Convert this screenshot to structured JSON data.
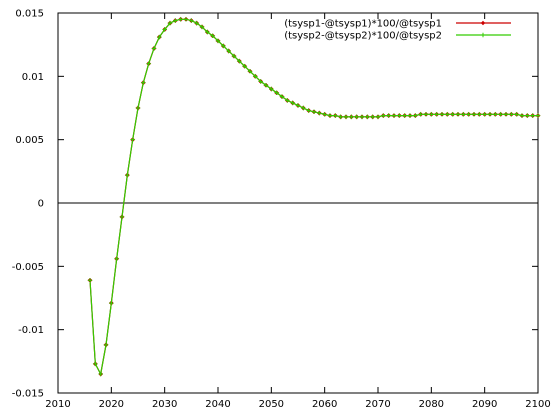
{
  "chart_data": {
    "type": "line",
    "title": "",
    "xlabel": "",
    "ylabel": "",
    "xlim": [
      2010,
      2100
    ],
    "ylim": [
      -0.015,
      0.015
    ],
    "x_ticks": [
      "2010",
      "2020",
      "2030",
      "2040",
      "2050",
      "2060",
      "2070",
      "2080",
      "2090",
      "2100"
    ],
    "y_ticks": [
      "0.015",
      "0.01",
      "0.005",
      "0",
      "-0.005",
      "-0.01",
      "-0.015"
    ],
    "zero_line": true,
    "grid": false,
    "legend_position": "top-right",
    "x": [
      2016,
      2017,
      2018,
      2019,
      2020,
      2021,
      2022,
      2023,
      2024,
      2025,
      2026,
      2027,
      2028,
      2029,
      2030,
      2031,
      2032,
      2033,
      2034,
      2035,
      2036,
      2037,
      2038,
      2039,
      2040,
      2041,
      2042,
      2043,
      2044,
      2045,
      2046,
      2047,
      2048,
      2049,
      2050,
      2051,
      2052,
      2053,
      2054,
      2055,
      2056,
      2057,
      2058,
      2059,
      2060,
      2061,
      2062,
      2063,
      2064,
      2065,
      2066,
      2067,
      2068,
      2069,
      2070,
      2071,
      2072,
      2073,
      2074,
      2075,
      2076,
      2077,
      2078,
      2079,
      2080,
      2081,
      2082,
      2083,
      2084,
      2085,
      2086,
      2087,
      2088,
      2089,
      2090,
      2091,
      2092,
      2093,
      2094,
      2095,
      2096,
      2097,
      2098,
      2099,
      2100
    ],
    "series": [
      {
        "name": "(tsysp1-@tsysp1)*100/@tsysp1",
        "color": "#cc0000",
        "marker": "diamond",
        "values": [
          -0.0061,
          -0.0127,
          -0.0135,
          -0.0112,
          -0.0079,
          -0.0044,
          -0.0011,
          0.0022,
          0.005,
          0.0075,
          0.0095,
          0.011,
          0.0122,
          0.0131,
          0.0137,
          0.0142,
          0.0144,
          0.0145,
          0.0145,
          0.0144,
          0.0142,
          0.0139,
          0.0135,
          0.0132,
          0.0128,
          0.0124,
          0.012,
          0.0116,
          0.0112,
          0.0108,
          0.0104,
          0.01,
          0.0096,
          0.0093,
          0.009,
          0.0087,
          0.0084,
          0.0081,
          0.0079,
          0.0077,
          0.0075,
          0.0073,
          0.0072,
          0.0071,
          0.007,
          0.0069,
          0.0069,
          0.0068,
          0.0068,
          0.0068,
          0.0068,
          0.0068,
          0.0068,
          0.0068,
          0.0068,
          0.0069,
          0.0069,
          0.0069,
          0.0069,
          0.0069,
          0.0069,
          0.0069,
          0.007,
          0.007,
          0.007,
          0.007,
          0.007,
          0.007,
          0.007,
          0.007,
          0.007,
          0.007,
          0.007,
          0.007,
          0.007,
          0.007,
          0.007,
          0.007,
          0.007,
          0.007,
          0.007,
          0.0069,
          0.0069,
          0.0069,
          0.0069
        ]
      },
      {
        "name": "(tsysp2-@tsysp2)*100/@tsysp2",
        "color": "#33cc00",
        "marker": "plus",
        "values": [
          -0.0061,
          -0.0127,
          -0.0135,
          -0.0112,
          -0.0079,
          -0.0044,
          -0.0011,
          0.0022,
          0.005,
          0.0075,
          0.0095,
          0.011,
          0.0122,
          0.0131,
          0.0137,
          0.0142,
          0.0144,
          0.0145,
          0.0145,
          0.0144,
          0.0142,
          0.0139,
          0.0135,
          0.0132,
          0.0128,
          0.0124,
          0.012,
          0.0116,
          0.0112,
          0.0108,
          0.0104,
          0.01,
          0.0096,
          0.0093,
          0.009,
          0.0087,
          0.0084,
          0.0081,
          0.0079,
          0.0077,
          0.0075,
          0.0073,
          0.0072,
          0.0071,
          0.007,
          0.0069,
          0.0069,
          0.0068,
          0.0068,
          0.0068,
          0.0068,
          0.0068,
          0.0068,
          0.0068,
          0.0068,
          0.0069,
          0.0069,
          0.0069,
          0.0069,
          0.0069,
          0.0069,
          0.0069,
          0.007,
          0.007,
          0.007,
          0.007,
          0.007,
          0.007,
          0.007,
          0.007,
          0.007,
          0.007,
          0.007,
          0.007,
          0.007,
          0.007,
          0.007,
          0.007,
          0.007,
          0.007,
          0.007,
          0.0069,
          0.0069,
          0.0069,
          0.0069
        ]
      }
    ]
  }
}
